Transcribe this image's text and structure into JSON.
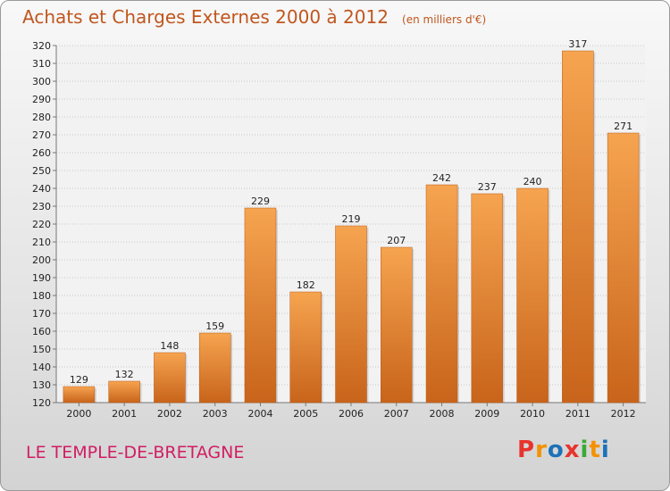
{
  "header": {
    "title": "Achats et Charges Externes 2000 à 2012",
    "unit": "(en milliers d'€)"
  },
  "footer": {
    "commune": "LE TEMPLE-DE-BRETAGNE",
    "logo": "Proxiti",
    "logo_colors": [
      "#e8332d",
      "#f39200",
      "#1d71b8",
      "#e8332d",
      "#3aaa35",
      "#f39200",
      "#1d71b8"
    ]
  },
  "colors": {
    "bar_light": "#f6a450",
    "bar_dark": "#c8641b",
    "grid": "#c8c8c8",
    "axis": "#777777"
  },
  "chart_data": {
    "type": "bar",
    "categories": [
      "2000",
      "2001",
      "2002",
      "2003",
      "2004",
      "2005",
      "2006",
      "2007",
      "2008",
      "2009",
      "2010",
      "2011",
      "2012"
    ],
    "values": [
      129,
      132,
      148,
      159,
      229,
      182,
      219,
      207,
      242,
      237,
      240,
      317,
      271
    ],
    "title": "Achats et Charges Externes 2000 à 2012",
    "ylim": [
      120,
      320
    ],
    "yticks": [
      120,
      130,
      140,
      150,
      160,
      170,
      180,
      190,
      200,
      210,
      220,
      230,
      240,
      250,
      260,
      270,
      280,
      290,
      300,
      310,
      320
    ],
    "grid": true,
    "legend": "none"
  }
}
